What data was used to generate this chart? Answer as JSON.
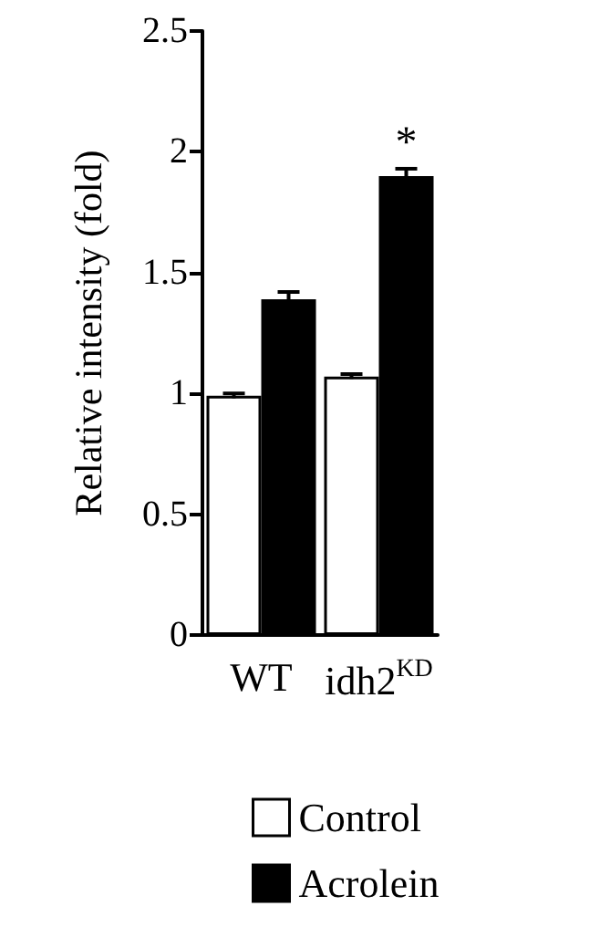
{
  "chart_data": {
    "type": "bar",
    "ylabel": "Relative intensity (fold)",
    "categories": [
      "WT",
      "idh2$^{KD}$"
    ],
    "series": [
      {
        "name": "Control",
        "color": "#ffffff",
        "values": [
          0.99,
          1.07
        ],
        "errors": [
          0.01,
          0.01
        ]
      },
      {
        "name": "Acrolein",
        "color": "#000000",
        "values": [
          1.39,
          1.9
        ],
        "errors": [
          0.03,
          0.03
        ]
      }
    ],
    "ylim": [
      0,
      2.5
    ],
    "yticks": [
      0,
      0.5,
      1,
      1.5,
      2,
      2.5
    ],
    "grid": false,
    "legend": "bottom",
    "annotations": [
      {
        "text": "*",
        "x": "idh2$^{KD}$",
        "y": 1.93
      }
    ]
  }
}
